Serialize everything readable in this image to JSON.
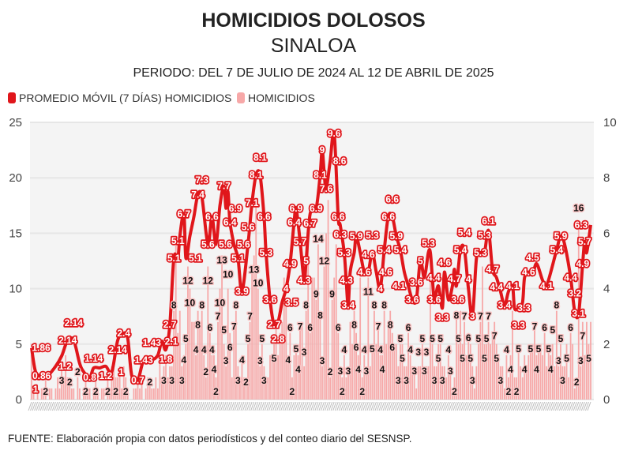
{
  "chart_data": {
    "type": "bar+line",
    "title": "HOMICIDIOS DOLOSOS",
    "subtitle": "SINALOA",
    "period": "PERIODO: DEL 7 DE JULIO DE 2024 AL 12 DE ABRIL DE 2025",
    "legend": [
      {
        "label": "PROMEDIO MÓVIL (7 DÍAS) HOMICIDIOS",
        "color": "#e0161b",
        "type": "line"
      },
      {
        "label": "HOMICIDIOS",
        "color": "#f7a8a8",
        "type": "bar"
      }
    ],
    "legend_position": "top-left",
    "left_axis": {
      "ylim": [
        0,
        25
      ],
      "ticks": [
        "0",
        "5",
        "10",
        "15",
        "20",
        "25"
      ]
    },
    "right_axis": {
      "ylim": [
        0,
        10
      ],
      "ticks": [
        "0",
        "2",
        "4",
        "6",
        "8",
        "10"
      ]
    },
    "x_start": "2024-07-07",
    "x_end": "2025-04-12",
    "daily_homicides": [
      4,
      1,
      0,
      1,
      0,
      1,
      1,
      2,
      0,
      1,
      1,
      0,
      1,
      2,
      1,
      3,
      2,
      4,
      2,
      2,
      1,
      1,
      0,
      2,
      1,
      0,
      1,
      2,
      1,
      1,
      0,
      1,
      2,
      1,
      0,
      1,
      1,
      0,
      2,
      1,
      3,
      4,
      2,
      2,
      3,
      1,
      3,
      2,
      1,
      0,
      0,
      1,
      1,
      2,
      1,
      2,
      0,
      1,
      2,
      2,
      1,
      1,
      2,
      1,
      4,
      2,
      3,
      4,
      2,
      3,
      3,
      8,
      14,
      6,
      8,
      3,
      4,
      5,
      12,
      10,
      7,
      7,
      4,
      8,
      7,
      8,
      4,
      2,
      12,
      6,
      4,
      4,
      2,
      7,
      10,
      13,
      5,
      3,
      10,
      6,
      2,
      7,
      8,
      3,
      2,
      4,
      2,
      2,
      5,
      7,
      12,
      13,
      18,
      10,
      3,
      5,
      3,
      2,
      2,
      4,
      4,
      5,
      7,
      4,
      6,
      7,
      11,
      9,
      4,
      6,
      2,
      4,
      5,
      4,
      7,
      7,
      3,
      8,
      14,
      6,
      11,
      11,
      9,
      14,
      8,
      3,
      12,
      15,
      18,
      2,
      9,
      11,
      14,
      6,
      3,
      2,
      4,
      2,
      3,
      7,
      5,
      8,
      6,
      4,
      11,
      2,
      4,
      3,
      11,
      3,
      5,
      8,
      5,
      7,
      4,
      4,
      8,
      5,
      7,
      8,
      6,
      5,
      5,
      3,
      5,
      5,
      3,
      3,
      6,
      4,
      3,
      3,
      1,
      3,
      3,
      5,
      3,
      3,
      3,
      11,
      5,
      3,
      3,
      5,
      5,
      3,
      3,
      2,
      4,
      3,
      1,
      2,
      8,
      5,
      8,
      5,
      7,
      4,
      6,
      5,
      3,
      1,
      3,
      5,
      7,
      12,
      5,
      5,
      7,
      5,
      6,
      7,
      5,
      4,
      3,
      3,
      1,
      4,
      2,
      4,
      8,
      2,
      2,
      5,
      3,
      2,
      4,
      3,
      4,
      5,
      5,
      7,
      4,
      5,
      5,
      4,
      6,
      3,
      5,
      4,
      5,
      3,
      8,
      3,
      5,
      3,
      3,
      5,
      2,
      6,
      5,
      1,
      2,
      16,
      3,
      7,
      4,
      7,
      5,
      7
    ],
    "moving_average_7d": [
      [
        0,
        1.86
      ],
      [
        2,
        1
      ],
      [
        5,
        0.86
      ],
      [
        8,
        0.86
      ],
      [
        12,
        1.2
      ],
      [
        15,
        1.57
      ],
      [
        18,
        2.14
      ],
      [
        21,
        2.14
      ],
      [
        24,
        1.3
      ],
      [
        26,
        1
      ],
      [
        29,
        0.8
      ],
      [
        31,
        1.14
      ],
      [
        34,
        1.14
      ],
      [
        37,
        1.2
      ],
      [
        40,
        1
      ],
      [
        43,
        2.14
      ],
      [
        46,
        2.4
      ],
      [
        48,
        2.2
      ],
      [
        50,
        0.86
      ],
      [
        53,
        0.7
      ],
      [
        56,
        1.43
      ],
      [
        60,
        1.43
      ],
      [
        63,
        1.6
      ],
      [
        65,
        2.1
      ],
      [
        67,
        1.8
      ],
      [
        69,
        2.7
      ],
      [
        71,
        5.1
      ],
      [
        73,
        5.1
      ],
      [
        74,
        5.9
      ],
      [
        76,
        6.7
      ],
      [
        77,
        5.1
      ],
      [
        79,
        5.9
      ],
      [
        81,
        6.6
      ],
      [
        83,
        7.4
      ],
      [
        85,
        7.3
      ],
      [
        88,
        5.6
      ],
      [
        90,
        6.6
      ],
      [
        92,
        5.6
      ],
      [
        94,
        7
      ],
      [
        96,
        7.7
      ],
      [
        97,
        6.9
      ],
      [
        98,
        7.5
      ],
      [
        99,
        6.4
      ],
      [
        101,
        5.6
      ],
      [
        103,
        5.1
      ],
      [
        105,
        3.9
      ],
      [
        108,
        5.6
      ],
      [
        110,
        7.1
      ],
      [
        112,
        8.1
      ],
      [
        114,
        8.1
      ],
      [
        116,
        6.6
      ],
      [
        117,
        5.3
      ],
      [
        119,
        3.6
      ],
      [
        121,
        2.7
      ],
      [
        123,
        2.8
      ],
      [
        125,
        3.5
      ],
      [
        127,
        4
      ],
      [
        129,
        4.9
      ],
      [
        131,
        6.4
      ],
      [
        132,
        6.9
      ],
      [
        134,
        5.7
      ],
      [
        136,
        4.3
      ],
      [
        137,
        5
      ],
      [
        139,
        6.7
      ],
      [
        142,
        6.9
      ],
      [
        144,
        8.1
      ],
      [
        145,
        9
      ],
      [
        146,
        8.2
      ],
      [
        147,
        7.6
      ],
      [
        149,
        8.6
      ],
      [
        151,
        9.6
      ],
      [
        153,
        6.6
      ],
      [
        154,
        6.3
      ],
      [
        156,
        5.3
      ],
      [
        157,
        4.3
      ],
      [
        158,
        3.4
      ],
      [
        159,
        4.6
      ],
      [
        161,
        5.3
      ],
      [
        162,
        5.9
      ],
      [
        164,
        5.3
      ],
      [
        166,
        4.6
      ],
      [
        168,
        4.6
      ],
      [
        170,
        5.3
      ],
      [
        172,
        4.6
      ],
      [
        174,
        4
      ],
      [
        176,
        5.4
      ],
      [
        178,
        6.6
      ],
      [
        180,
        6.6
      ],
      [
        182,
        5.9
      ],
      [
        184,
        5.4
      ],
      [
        186,
        4.6
      ],
      [
        188,
        4.1
      ],
      [
        190,
        3.6
      ],
      [
        192,
        3.6
      ],
      [
        194,
        5
      ],
      [
        196,
        4.4
      ],
      [
        198,
        5.3
      ],
      [
        199,
        5.3
      ],
      [
        200,
        4.4
      ],
      [
        201,
        3.6
      ],
      [
        203,
        4.1
      ],
      [
        205,
        3.3
      ],
      [
        206,
        4.6
      ],
      [
        208,
        3.6
      ],
      [
        210,
        4.1
      ],
      [
        211,
        4.7
      ],
      [
        212,
        4.1
      ],
      [
        214,
        5.4
      ],
      [
        216,
        5.4
      ],
      [
        218,
        4
      ],
      [
        220,
        3
      ],
      [
        222,
        5.1
      ],
      [
        224,
        5.3
      ],
      [
        226,
        5.3
      ],
      [
        228,
        6.1
      ],
      [
        230,
        4.7
      ],
      [
        232,
        4.4
      ],
      [
        234,
        3.9
      ],
      [
        236,
        3.4
      ],
      [
        238,
        3.9
      ],
      [
        240,
        4.1
      ],
      [
        241,
        3.3
      ],
      [
        243,
        3.3
      ],
      [
        245,
        3.5
      ],
      [
        246,
        4.4
      ],
      [
        248,
        4.6
      ],
      [
        250,
        4.5
      ],
      [
        252,
        4.9
      ],
      [
        255,
        4.3
      ],
      [
        257,
        4.1
      ],
      [
        262,
        5.4
      ],
      [
        264,
        5.9
      ],
      [
        266,
        5.6
      ],
      [
        269,
        4.4
      ],
      [
        271,
        3.2
      ],
      [
        273,
        3.1
      ],
      [
        275,
        4.9
      ],
      [
        276,
        5.7
      ],
      [
        277,
        5.3
      ],
      [
        279,
        6.3
      ]
    ],
    "colors": {
      "line": "#e0161b",
      "bar": "#f7a8a8",
      "plot_bg": "#f4f4f4",
      "grid": "#e6e6e6"
    }
  },
  "footer": "FUENTE: Elaboración propia con datos periodísticos y del conteo diario del SESNSP."
}
